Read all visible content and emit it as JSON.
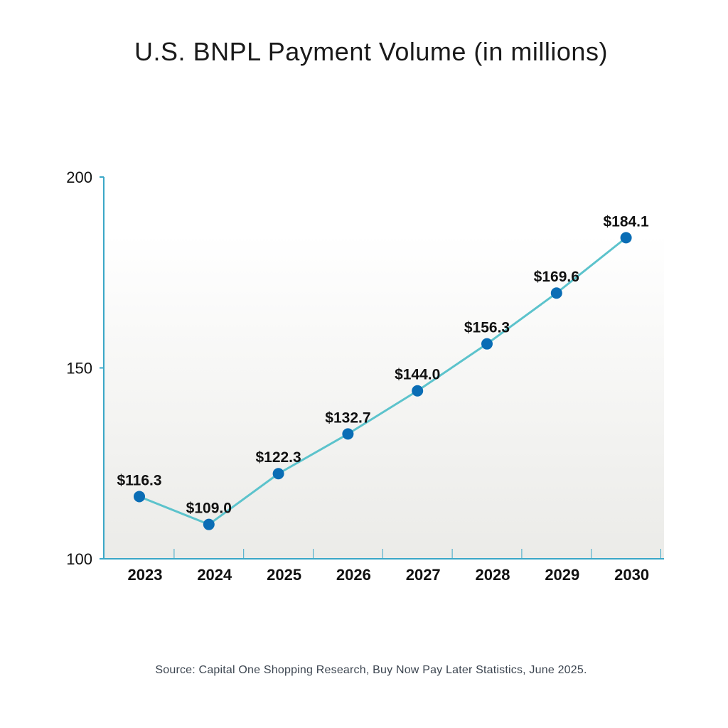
{
  "chart_data": {
    "type": "line",
    "title": "U.S. BNPL Payment Volume (in millions)",
    "categories": [
      "2023",
      "2024",
      "2025",
      "2026",
      "2027",
      "2028",
      "2029",
      "2030"
    ],
    "values": [
      116.3,
      109.0,
      122.3,
      132.7,
      144.0,
      156.3,
      169.6,
      184.1
    ],
    "data_labels": [
      "$116.3",
      "$109.0",
      "$122.3",
      "$132.7",
      "$144.0",
      "$156.3",
      "$169.6",
      "$184.1"
    ],
    "ylim": [
      100,
      200
    ],
    "yticks": [
      "100",
      "150",
      "200"
    ],
    "xlabel": "",
    "ylabel": "",
    "grid": false,
    "legend": "none",
    "line_color": "#5cc3cc",
    "marker_color": "#0a6db5",
    "axis_color": "#3aa7c7",
    "source": "Source: Capital One Shopping Research, Buy Now Pay Later Statistics, June 2025."
  }
}
